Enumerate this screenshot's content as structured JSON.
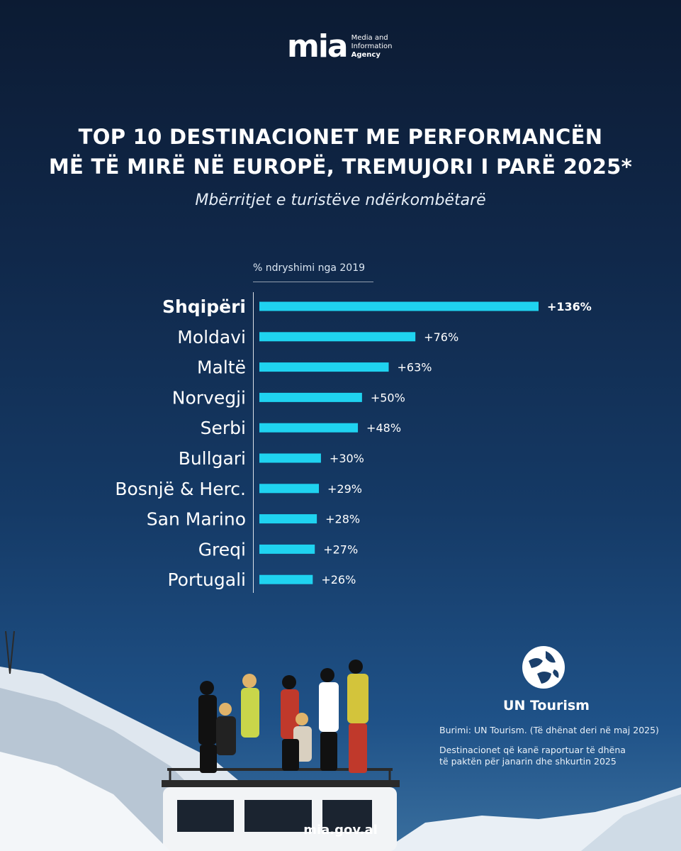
{
  "logo": {
    "mark": "mia",
    "line1": "Media and",
    "line2": "Information",
    "line3": "Agency"
  },
  "title_line1": "TOP 10 DESTINACIONET ME PERFORMANCËN",
  "title_line2": "MË TË MIRË NË EUROPË, TREMUJORI I PARË 2025*",
  "subtitle": "Mbërritjet e turistëve ndërkombëtarë",
  "chart_data": {
    "type": "bar",
    "orientation": "horizontal",
    "xlabel": "% ndryshimi nga 2019",
    "categories": [
      "Shqipëri",
      "Moldavi",
      "Maltë",
      "Norvegji",
      "Serbi",
      "Bullgari",
      "Bosnjë & Herc.",
      "San Marino",
      "Greqi",
      "Portugali"
    ],
    "values": [
      136,
      76,
      63,
      50,
      48,
      30,
      29,
      28,
      27,
      26
    ],
    "value_labels": [
      "+136%",
      "+76%",
      "+63%",
      "+50%",
      "+48%",
      "+30%",
      "+29%",
      "+28%",
      "+27%",
      "+26%"
    ],
    "highlight_index": 0,
    "xlim": [
      0,
      136
    ],
    "bar_color": "#1fd3f0"
  },
  "un_tourism": {
    "name": "UN Tourism"
  },
  "source": "Burimi: UN Tourism. (Të dhënat deri në maj 2025)",
  "note_line1": "Destinacionet që kanë raportuar të dhëna",
  "note_line2": "të paktën për janarin dhe shkurtin 2025",
  "site": "mia.gov.al",
  "colors": {
    "background_top": "#0c1b33",
    "background_bottom": "#3a6f9e",
    "bar": "#1fd3f0"
  }
}
